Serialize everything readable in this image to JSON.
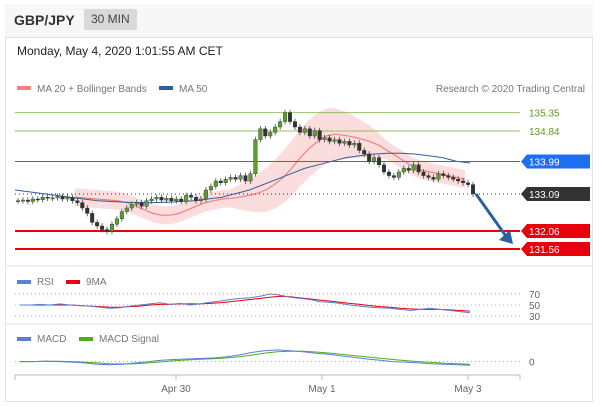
{
  "header": {
    "pair": "GBP/JPY",
    "timeframe": "30 MIN"
  },
  "datetime": "Monday, May 4, 2020 1:01:55 AM CET",
  "copyright": "Research © 2020 Trading Central",
  "chart_data": {
    "type": "line",
    "title": "GBP/JPY",
    "timeframe": "30 MIN",
    "x_ticks": [
      "Apr 30",
      "May 1",
      "May 3"
    ],
    "ylim": [
      131.2,
      135.7
    ],
    "legend": [
      {
        "name": "MA 20 + Bollinger Bands",
        "color": "#f08080"
      },
      {
        "name": "MA 50",
        "color": "#2e5f9e"
      }
    ],
    "levels": [
      {
        "value": 135.35,
        "label": "135.35",
        "color": "#7cb342",
        "kind": "resistance"
      },
      {
        "value": 134.84,
        "label": "134.84",
        "color": "#7cb342",
        "kind": "resistance"
      },
      {
        "value": 133.99,
        "label": "133.99",
        "color": "#1e6ef2",
        "kind": "pivot"
      },
      {
        "value": 133.09,
        "label": "133.09",
        "color": "#333333",
        "kind": "last"
      },
      {
        "value": 132.06,
        "label": "132.06",
        "color": "#e8000b",
        "kind": "support"
      },
      {
        "value": 131.56,
        "label": "131.56",
        "color": "#e8000b",
        "kind": "support"
      }
    ],
    "price_series": [
      132.9,
      132.92,
      132.88,
      132.95,
      132.93,
      133.0,
      132.97,
      132.98,
      133.02,
      132.95,
      133.0,
      132.9,
      132.85,
      132.7,
      132.55,
      132.3,
      132.2,
      132.1,
      132.05,
      132.25,
      132.4,
      132.6,
      132.7,
      132.8,
      132.85,
      132.75,
      132.9,
      132.95,
      133.0,
      132.92,
      132.97,
      132.9,
      132.95,
      132.88,
      133.05,
      133.0,
      132.9,
      132.95,
      133.2,
      133.3,
      133.45,
      133.4,
      133.5,
      133.55,
      133.5,
      133.6,
      133.45,
      133.65,
      134.6,
      134.9,
      134.7,
      134.8,
      134.95,
      135.1,
      135.35,
      135.1,
      134.95,
      134.8,
      134.9,
      134.7,
      134.85,
      134.6,
      134.65,
      134.55,
      134.6,
      134.5,
      134.55,
      134.45,
      134.5,
      134.3,
      134.2,
      134.0,
      134.1,
      133.9,
      133.7,
      133.6,
      133.55,
      133.7,
      133.8,
      133.75,
      133.9,
      133.7,
      133.6,
      133.55,
      133.5,
      133.65,
      133.6,
      133.55,
      133.5,
      133.45,
      133.4,
      133.35,
      133.09
    ],
    "ma20_series": [
      133.0,
      132.98,
      132.96,
      132.94,
      132.92,
      132.9,
      132.85,
      132.75,
      132.65,
      132.55,
      132.5,
      132.5,
      132.55,
      132.65,
      132.75,
      132.85,
      132.9,
      132.95,
      132.97,
      133.0,
      133.05,
      133.1,
      133.2,
      133.35,
      133.55,
      133.8,
      134.1,
      134.35,
      134.55,
      134.7,
      134.75,
      134.72,
      134.68,
      134.62,
      134.55,
      134.45,
      134.3,
      134.15,
      134.0,
      133.85,
      133.75,
      133.7,
      133.65,
      133.6,
      133.55,
      133.5
    ],
    "ma50_series": [
      133.2,
      133.15,
      133.1,
      133.05,
      133.0,
      132.95,
      132.9,
      132.88,
      132.86,
      132.85,
      132.85,
      132.86,
      132.88,
      132.9,
      132.95,
      133.0,
      133.1,
      133.2,
      133.35,
      133.5,
      133.65,
      133.8,
      133.9,
      134.0,
      134.1,
      134.15,
      134.2,
      134.22,
      134.22,
      134.2,
      134.15,
      134.1,
      134.0,
      133.95
    ],
    "rsi": {
      "legend": [
        {
          "name": "RSI",
          "color": "#5b7fd6"
        },
        {
          "name": "9MA",
          "color": "#e8000b"
        }
      ],
      "levels": [
        70,
        50,
        30
      ],
      "level_labels": [
        "70",
        "50",
        "30"
      ],
      "ylim": [
        0,
        100
      ],
      "series": [
        50,
        50,
        51,
        50,
        52,
        50,
        49,
        48,
        46,
        44,
        45,
        48,
        50,
        52,
        54,
        51,
        53,
        50,
        52,
        55,
        57,
        60,
        62,
        63,
        66,
        70,
        68,
        64,
        62,
        60,
        56,
        55,
        53,
        50,
        48,
        46,
        45,
        44,
        42,
        40,
        42,
        44,
        42,
        40,
        38,
        36
      ],
      "ma_series": [
        50,
        50,
        50,
        50,
        50,
        50,
        49,
        48,
        47,
        46,
        46,
        47,
        48,
        50,
        51,
        51,
        52,
        52,
        52,
        53,
        54,
        56,
        58,
        60,
        62,
        64,
        66,
        65,
        63,
        61,
        59,
        57,
        55,
        53,
        51,
        49,
        47,
        46,
        44,
        43,
        42,
        42,
        42,
        41,
        40,
        39
      ]
    },
    "macd": {
      "legend": [
        {
          "name": "MACD",
          "color": "#5b7fd6"
        },
        {
          "name": "MACD Signal",
          "color": "#4caf1a"
        }
      ],
      "zero_label": "0",
      "ylim": [
        -0.4,
        0.6
      ],
      "series": [
        0.0,
        0.0,
        0.02,
        0.0,
        -0.02,
        -0.05,
        -0.1,
        -0.12,
        -0.1,
        -0.05,
        0.0,
        0.05,
        0.08,
        0.1,
        0.12,
        0.14,
        0.18,
        0.25,
        0.35,
        0.42,
        0.45,
        0.42,
        0.38,
        0.32,
        0.28,
        0.22,
        0.16,
        0.1,
        0.05,
        0.0,
        -0.02,
        -0.05,
        -0.08,
        -0.1,
        -0.12,
        -0.14
      ],
      "signal_series": [
        0.0,
        0.0,
        0.01,
        0.01,
        0.0,
        -0.02,
        -0.05,
        -0.08,
        -0.09,
        -0.08,
        -0.05,
        -0.01,
        0.03,
        0.06,
        0.09,
        0.11,
        0.14,
        0.18,
        0.25,
        0.32,
        0.38,
        0.4,
        0.4,
        0.37,
        0.33,
        0.28,
        0.23,
        0.18,
        0.13,
        0.08,
        0.04,
        0.0,
        -0.03,
        -0.06,
        -0.08,
        -0.1
      ]
    }
  }
}
